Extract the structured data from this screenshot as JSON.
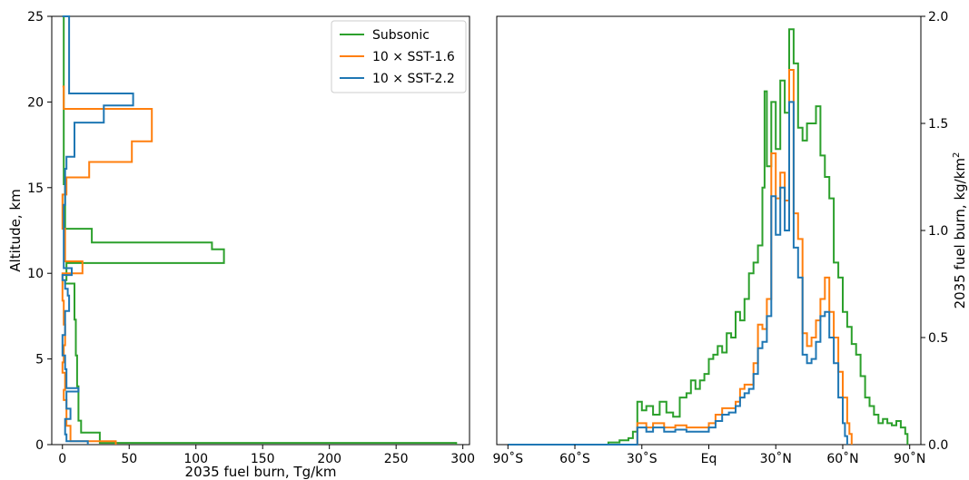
{
  "chart_data": [
    {
      "type": "line",
      "title": "",
      "xlabel": "2035 fuel burn, Tg/km",
      "ylabel": "Altitude, km",
      "xlim": [
        -8,
        305
      ],
      "ylim": [
        0,
        25
      ],
      "xticks": [
        0,
        50,
        100,
        150,
        200,
        250,
        300
      ],
      "yticks": [
        0,
        5,
        10,
        15,
        20,
        25
      ],
      "legend_position": "top-right",
      "grid": false,
      "series": [
        {
          "name": "Subsonic",
          "color": "#2ca02c",
          "x": [
            295,
            28,
            14,
            12,
            11,
            10,
            9,
            2,
            3,
            121,
            112,
            22,
            2,
            1,
            1,
            0
          ],
          "y": [
            0,
            0.1,
            0.7,
            1.4,
            3.4,
            5.2,
            7.3,
            9.4,
            9.6,
            10.6,
            11.4,
            11.8,
            12.6,
            15.2,
            17.6,
            25
          ]
        },
        {
          "name": "10 × SST-1.6",
          "color": "#ff7f0e",
          "x": [
            40,
            6,
            3,
            1,
            2,
            0,
            1,
            2,
            1,
            0,
            15,
            2,
            0,
            3,
            20,
            52,
            67,
            1,
            0
          ],
          "y": [
            0,
            0.2,
            1.1,
            2.6,
            3.2,
            4.2,
            4.8,
            5.8,
            7.0,
            8.4,
            10.0,
            10.7,
            12.6,
            14.6,
            15.6,
            16.5,
            17.7,
            19.6,
            20.9
          ]
        },
        {
          "name": "10 × SST-2.2",
          "color": "#1f77b4",
          "x": [
            19,
            3,
            2,
            6,
            3,
            12,
            3,
            2,
            0,
            2,
            5,
            4,
            2,
            0,
            7,
            1,
            1,
            2,
            3,
            9,
            31,
            53,
            5,
            0
          ],
          "y": [
            0,
            0.2,
            0.6,
            1.5,
            2.1,
            3.1,
            3.3,
            4.4,
            5.2,
            6.4,
            7.8,
            8.7,
            9.1,
            9.6,
            9.9,
            10.3,
            11.0,
            14.0,
            16.1,
            16.8,
            18.8,
            19.8,
            20.5,
            25
          ]
        }
      ]
    },
    {
      "type": "line",
      "title": "",
      "xlabel": "",
      "ylabel": "2035 fuel burn, kg/km²",
      "ylabel_parts": {
        "main": "2035 fuel burn, kg/km",
        "sup": "2"
      },
      "y_axis_side": "right",
      "xlim": [
        -95,
        95
      ],
      "ylim": [
        0,
        2.0
      ],
      "xticks": [
        -90,
        -60,
        -30,
        0,
        30,
        60,
        90
      ],
      "xtick_labels": [
        "90˚S",
        "60˚S",
        "30˚S",
        "Eq",
        "30˚N",
        "60˚N",
        "90˚N"
      ],
      "yticks": [
        0.0,
        0.5,
        1.0,
        1.5,
        2.0
      ],
      "ytick_labels": [
        "0.0",
        "0.5",
        "1.0",
        "1.5",
        "2.0"
      ],
      "grid": false,
      "series": [
        {
          "name": "Subsonic",
          "color": "#2ca02c",
          "x": [
            -90,
            -50,
            -45,
            -40,
            -36,
            -34,
            -32,
            -30,
            -28,
            -25,
            -22,
            -19,
            -16,
            -13,
            -10,
            -8,
            -6,
            -4,
            -2,
            0,
            2,
            4,
            6,
            8,
            10,
            12,
            14,
            16,
            18,
            20,
            22,
            24,
            25,
            26,
            28,
            30,
            32,
            34,
            36,
            38,
            40,
            42,
            44,
            46,
            48,
            50,
            52,
            54,
            56,
            58,
            60,
            62,
            64,
            66,
            68,
            70,
            72,
            74,
            76,
            78,
            80,
            82,
            84,
            86,
            88,
            89
          ],
          "y": [
            0,
            0,
            0.01,
            0.02,
            0.03,
            0.06,
            0.2,
            0.16,
            0.18,
            0.14,
            0.2,
            0.15,
            0.13,
            0.22,
            0.24,
            0.3,
            0.26,
            0.3,
            0.33,
            0.4,
            0.42,
            0.46,
            0.43,
            0.52,
            0.5,
            0.62,
            0.58,
            0.68,
            0.8,
            0.85,
            0.93,
            1.2,
            1.65,
            1.3,
            1.6,
            1.38,
            1.7,
            1.55,
            1.94,
            1.78,
            1.48,
            1.42,
            1.5,
            1.5,
            1.58,
            1.35,
            1.25,
            1.15,
            0.85,
            0.78,
            0.62,
            0.55,
            0.47,
            0.42,
            0.32,
            0.22,
            0.18,
            0.14,
            0.1,
            0.12,
            0.1,
            0.09,
            0.11,
            0.08,
            0.05,
            0
          ]
        },
        {
          "name": "10 × SST-1.6",
          "color": "#ff7f0e",
          "x": [
            -90,
            -32,
            -28,
            -25,
            -20,
            -15,
            -10,
            -5,
            0,
            3,
            6,
            9,
            12,
            14,
            16,
            18,
            20,
            22,
            24,
            26,
            28,
            30,
            32,
            34,
            36,
            38,
            40,
            42,
            44,
            46,
            48,
            50,
            52,
            54,
            56,
            58,
            60,
            62,
            63,
            64
          ],
          "y": [
            0,
            0.1,
            0.08,
            0.1,
            0.08,
            0.09,
            0.08,
            0.08,
            0.1,
            0.14,
            0.17,
            0.17,
            0.2,
            0.26,
            0.28,
            0.28,
            0.38,
            0.56,
            0.54,
            0.68,
            1.36,
            1.15,
            1.27,
            1.14,
            1.75,
            1.08,
            0.96,
            0.52,
            0.46,
            0.5,
            0.58,
            0.68,
            0.78,
            0.62,
            0.5,
            0.34,
            0.22,
            0.1,
            0.05,
            0
          ]
        },
        {
          "name": "10 × SST-2.2",
          "color": "#1f77b4",
          "x": [
            -90,
            -32,
            -28,
            -25,
            -20,
            -15,
            -10,
            -5,
            0,
            3,
            6,
            9,
            12,
            14,
            16,
            18,
            20,
            22,
            24,
            26,
            28,
            30,
            32,
            34,
            36,
            38,
            40,
            42,
            44,
            46,
            48,
            50,
            52,
            54,
            56,
            58,
            60,
            61,
            62
          ],
          "y": [
            0,
            0.08,
            0.06,
            0.08,
            0.06,
            0.07,
            0.06,
            0.06,
            0.08,
            0.11,
            0.14,
            0.15,
            0.18,
            0.22,
            0.24,
            0.26,
            0.33,
            0.45,
            0.48,
            0.6,
            1.16,
            0.98,
            1.2,
            1.0,
            1.6,
            0.92,
            0.78,
            0.42,
            0.38,
            0.4,
            0.48,
            0.6,
            0.62,
            0.5,
            0.38,
            0.22,
            0.1,
            0.04,
            0
          ]
        }
      ]
    }
  ]
}
